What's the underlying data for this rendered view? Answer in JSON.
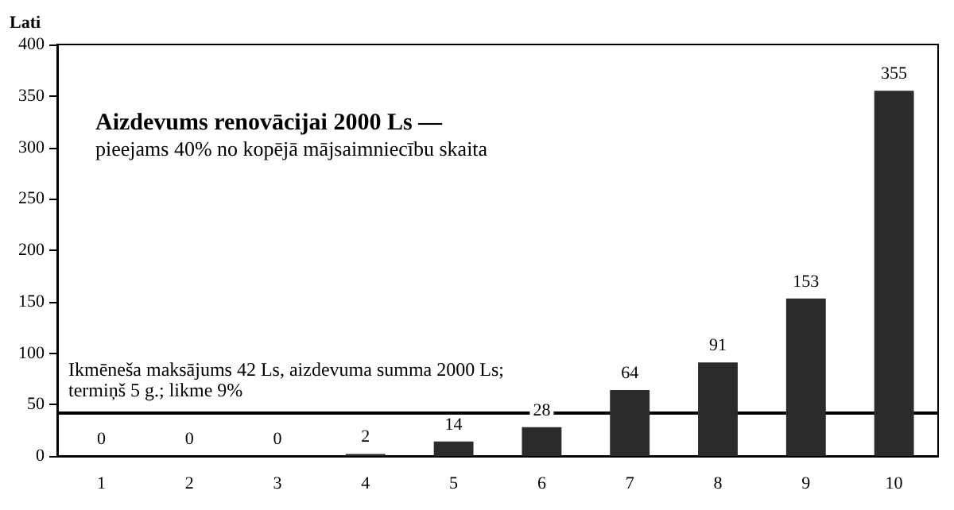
{
  "chart_data": {
    "type": "bar",
    "ylabel": "Lati",
    "categories": [
      "1",
      "2",
      "3",
      "4",
      "5",
      "6",
      "7",
      "8",
      "9",
      "10"
    ],
    "values": [
      0,
      0,
      0,
      2,
      14,
      28,
      64,
      91,
      153,
      355
    ],
    "color": "#2b2b2b",
    "ylim": [
      0,
      400
    ],
    "yticks": [
      0,
      50,
      100,
      150,
      200,
      250,
      300,
      350,
      400
    ],
    "data_labels": true,
    "grid": false,
    "ref_lines": [
      {
        "axis": "y",
        "value": 42,
        "label": "Ikmēneša maksājums 42 Ls, aizdevuma summa 2000 Ls; termiņš 5 g.; likme 9%",
        "color": "#000000"
      }
    ],
    "annotations": [
      "Aizdevums renovācijai 2000 Ls —",
      "pieejams 40% no kopējā mājsaimniecību skaita"
    ]
  }
}
